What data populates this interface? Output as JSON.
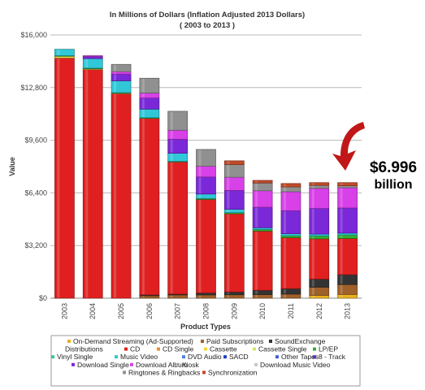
{
  "chart_data": {
    "type": "bar",
    "stacked": true,
    "title": "In Millions of Dollars (Inflation Adjusted 2013 Dollars)",
    "subtitle": "( 2003 to 2013 )",
    "xlabel": "Product Types",
    "ylabel": "Value",
    "ylim": [
      0,
      16000
    ],
    "yticks": [
      "$0",
      "$3,200",
      "$6,400",
      "$9,600",
      "$12,800",
      "$16,000"
    ],
    "ytick_values": [
      0,
      3200,
      6400,
      9600,
      12800,
      16000
    ],
    "grid": true,
    "legend_position": "bottom",
    "categories": [
      "2003",
      "2004",
      "2005",
      "2006",
      "2007",
      "2008",
      "2009",
      "2010",
      "2011",
      "2012",
      "2013"
    ],
    "series": [
      {
        "name": "On-Demand Streaming (Ad-Supported)",
        "color": "#e8b020",
        "values": [
          0,
          0,
          0,
          0,
          0,
          0,
          0,
          0,
          0,
          170,
          230
        ]
      },
      {
        "name": "Paid Subscriptions",
        "color": "#a0602a",
        "values": [
          0,
          0,
          0,
          150,
          200,
          200,
          210,
          220,
          250,
          500,
          600
        ]
      },
      {
        "name": "SoundExchange",
        "color": "#333333",
        "values": [
          0,
          0,
          0,
          50,
          50,
          120,
          170,
          260,
          330,
          490,
          600
        ]
      },
      {
        "name": "CD",
        "color": "#e02020",
        "values": [
          14600,
          13900,
          12450,
          10750,
          8050,
          5680,
          4750,
          3600,
          3100,
          2450,
          2200
        ]
      },
      {
        "name": "Cassette",
        "color": "#f0d840",
        "values": [
          110,
          50,
          20,
          0,
          0,
          0,
          0,
          0,
          0,
          0,
          0
        ]
      },
      {
        "name": "LP/EP",
        "color": "#30b030",
        "values": [
          30,
          30,
          20,
          20,
          20,
          60,
          70,
          100,
          120,
          175,
          215
        ]
      },
      {
        "name": "Music Video",
        "color": "#30c8d8",
        "values": [
          390,
          580,
          720,
          520,
          490,
          270,
          200,
          100,
          120,
          110,
          110
        ]
      },
      {
        "name": "Download Single",
        "color": "#7a28d8",
        "values": [
          0,
          130,
          410,
          680,
          850,
          1040,
          1150,
          1250,
          1400,
          1560,
          1530
        ]
      },
      {
        "name": "Kiosk",
        "color": "#a8a8a8",
        "values": [
          0,
          0,
          0,
          0,
          0,
          0,
          0,
          0,
          0,
          0,
          0
        ]
      },
      {
        "name": "Download Album",
        "color": "#d840e8",
        "values": [
          0,
          50,
          150,
          300,
          550,
          650,
          800,
          1000,
          1150,
          1220,
          1230
        ]
      },
      {
        "name": "Ringtones & Ringbacks",
        "color": "#909090",
        "values": [
          0,
          0,
          440,
          900,
          1150,
          1020,
          770,
          470,
          290,
          180,
          120
        ]
      },
      {
        "name": "Synchronization",
        "color": "#c04a2a",
        "values": [
          0,
          0,
          0,
          0,
          0,
          0,
          230,
          160,
          210,
          170,
          190
        ]
      }
    ]
  },
  "legend": {
    "items": [
      {
        "label": "On-Demand Streaming (Ad-Supported)",
        "color": "#e8b020"
      },
      {
        "label": "Paid Subscriptions",
        "color": "#a0602a"
      },
      {
        "label": "SoundExchange",
        "color": "#333333"
      },
      {
        "label": "Distributions",
        "color": ""
      },
      {
        "label": "CD",
        "color": "#e02020"
      },
      {
        "label": "CD Single",
        "color": "#e89030"
      },
      {
        "label": "Cassette",
        "color": "#f0d840"
      },
      {
        "label": "Cassette Single",
        "color": "#d8e860"
      },
      {
        "label": "LP/EP",
        "color": "#30b030"
      },
      {
        "label": "Vinyl Single",
        "color": "#30c8a0"
      },
      {
        "label": "Music Video",
        "color": "#30c8d8"
      },
      {
        "label": "DVD Audio",
        "color": "#5080e0"
      },
      {
        "label": "SACD",
        "color": "#2040c0"
      },
      {
        "label": "Other Tapes",
        "color": "#4060d0"
      },
      {
        "label": "8 - Track",
        "color": "#6030c0"
      },
      {
        "label": "Download Single",
        "color": "#7a28d8"
      },
      {
        "label": "Download Album",
        "color": "#d840e8"
      },
      {
        "label": "Kiosk",
        "color": "#a8a8a8"
      },
      {
        "label": "Download Music Video",
        "color": "#c8c8c8"
      },
      {
        "label": "Ringtones & Ringbacks",
        "color": "#909090"
      },
      {
        "label": "Synchronization",
        "color": "#c04a2a"
      }
    ]
  },
  "callout": {
    "amount": "$6.996",
    "unit": "billion",
    "arrow_color": "#c01818"
  }
}
